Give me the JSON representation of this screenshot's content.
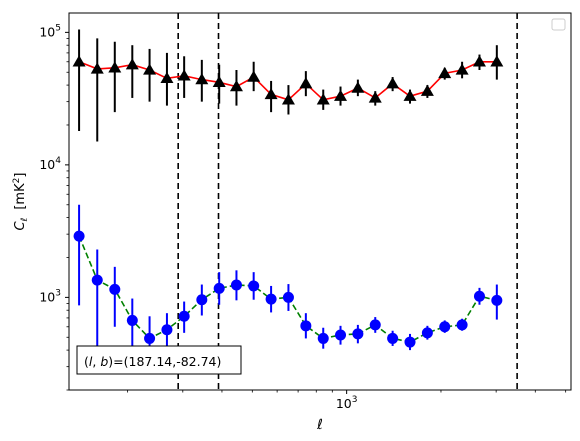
{
  "chart_data": {
    "type": "scatter",
    "title": "",
    "xlabel": "ℓ",
    "ylabel_main": "C",
    "ylabel_sub": "ℓ",
    "ylabel_unit": "[mK",
    "ylabel_unit_sup": "2",
    "ylabel_unit_close": "]",
    "xscale": "log",
    "yscale": "log",
    "xlim": [
      130,
      5200
    ],
    "ylim": [
      200,
      140000
    ],
    "x_tick_labels": [
      {
        "value": 1000,
        "base": "10",
        "exp": "3"
      }
    ],
    "y_tick_labels": [
      {
        "value": 1000,
        "base": "10",
        "exp": "3"
      },
      {
        "value": 10000,
        "base": "10",
        "exp": "4"
      },
      {
        "value": 100000,
        "base": "10",
        "exp": "5"
      }
    ],
    "vlines": [
      290,
      390,
      3500
    ],
    "legend": {
      "placement": "top-right",
      "entries": []
    },
    "annotation": "(l, b)=(187.14,-82.74)",
    "annotation_parts": {
      "open": "(",
      "l": "l",
      "comma": ", ",
      "b": "b",
      "rest": ")=(187.14,-82.74)"
    },
    "series": [
      {
        "marker": "triangle",
        "line_style": "solid",
        "color": "#000000",
        "line_color": "#ff0000",
        "points": [
          {
            "x": 140,
            "y": 60000,
            "lo": 18000,
            "hi": 105000
          },
          {
            "x": 160,
            "y": 53000,
            "lo": 15000,
            "hi": 90000
          },
          {
            "x": 182,
            "y": 54000,
            "lo": 25000,
            "hi": 85000
          },
          {
            "x": 207,
            "y": 57000,
            "lo": 32000,
            "hi": 80000
          },
          {
            "x": 235,
            "y": 52000,
            "lo": 30000,
            "hi": 75000
          },
          {
            "x": 267,
            "y": 45000,
            "lo": 28000,
            "hi": 70000
          },
          {
            "x": 303,
            "y": 47000,
            "lo": 32000,
            "hi": 66000
          },
          {
            "x": 345,
            "y": 44000,
            "lo": 30000,
            "hi": 62000
          },
          {
            "x": 392,
            "y": 42000,
            "lo": 29000,
            "hi": 57000
          },
          {
            "x": 445,
            "y": 39000,
            "lo": 28000,
            "hi": 52000
          },
          {
            "x": 505,
            "y": 46000,
            "lo": 36000,
            "hi": 60000
          },
          {
            "x": 574,
            "y": 34000,
            "lo": 25000,
            "hi": 43000
          },
          {
            "x": 652,
            "y": 31000,
            "lo": 24000,
            "hi": 40000
          },
          {
            "x": 741,
            "y": 41000,
            "lo": 33000,
            "hi": 51000
          },
          {
            "x": 842,
            "y": 31000,
            "lo": 26000,
            "hi": 37000
          },
          {
            "x": 956,
            "y": 33000,
            "lo": 28000,
            "hi": 39000
          },
          {
            "x": 1086,
            "y": 38000,
            "lo": 33000,
            "hi": 44000
          },
          {
            "x": 1234,
            "y": 32000,
            "lo": 28000,
            "hi": 36000
          },
          {
            "x": 1402,
            "y": 41000,
            "lo": 36000,
            "hi": 46000
          },
          {
            "x": 1593,
            "y": 33000,
            "lo": 29000,
            "hi": 37000
          },
          {
            "x": 1810,
            "y": 36000,
            "lo": 32000,
            "hi": 40000
          },
          {
            "x": 2056,
            "y": 49000,
            "lo": 44000,
            "hi": 54000
          },
          {
            "x": 2336,
            "y": 52000,
            "lo": 45000,
            "hi": 60000
          },
          {
            "x": 2654,
            "y": 60000,
            "lo": 52000,
            "hi": 68000
          },
          {
            "x": 3015,
            "y": 60000,
            "lo": 44000,
            "hi": 80000
          }
        ]
      },
      {
        "marker": "circle",
        "line_style": "dashed",
        "color": "#0000ff",
        "line_color": "#008000",
        "points": [
          {
            "x": 140,
            "y": 2900,
            "lo": 870,
            "hi": 5000
          },
          {
            "x": 160,
            "y": 1350,
            "lo": 400,
            "hi": 2300
          },
          {
            "x": 182,
            "y": 1150,
            "lo": 600,
            "hi": 1700
          },
          {
            "x": 207,
            "y": 670,
            "lo": 380,
            "hi": 980
          },
          {
            "x": 235,
            "y": 490,
            "lo": 340,
            "hi": 720
          },
          {
            "x": 267,
            "y": 570,
            "lo": 400,
            "hi": 760
          },
          {
            "x": 303,
            "y": 720,
            "lo": 540,
            "hi": 930
          },
          {
            "x": 345,
            "y": 960,
            "lo": 730,
            "hi": 1250
          },
          {
            "x": 392,
            "y": 1170,
            "lo": 880,
            "hi": 1550
          },
          {
            "x": 445,
            "y": 1240,
            "lo": 950,
            "hi": 1600
          },
          {
            "x": 505,
            "y": 1220,
            "lo": 960,
            "hi": 1550
          },
          {
            "x": 574,
            "y": 970,
            "lo": 770,
            "hi": 1220
          },
          {
            "x": 652,
            "y": 1000,
            "lo": 790,
            "hi": 1260
          },
          {
            "x": 741,
            "y": 610,
            "lo": 490,
            "hi": 760
          },
          {
            "x": 842,
            "y": 490,
            "lo": 410,
            "hi": 590
          },
          {
            "x": 956,
            "y": 520,
            "lo": 440,
            "hi": 610
          },
          {
            "x": 1086,
            "y": 530,
            "lo": 450,
            "hi": 620
          },
          {
            "x": 1234,
            "y": 620,
            "lo": 540,
            "hi": 710
          },
          {
            "x": 1402,
            "y": 490,
            "lo": 430,
            "hi": 560
          },
          {
            "x": 1593,
            "y": 460,
            "lo": 400,
            "hi": 530
          },
          {
            "x": 1810,
            "y": 540,
            "lo": 480,
            "hi": 610
          },
          {
            "x": 2056,
            "y": 600,
            "lo": 540,
            "hi": 670
          },
          {
            "x": 2336,
            "y": 620,
            "lo": 560,
            "hi": 690
          },
          {
            "x": 2654,
            "y": 1020,
            "lo": 880,
            "hi": 1180
          },
          {
            "x": 3015,
            "y": 950,
            "lo": 680,
            "hi": 1250
          }
        ]
      }
    ]
  }
}
